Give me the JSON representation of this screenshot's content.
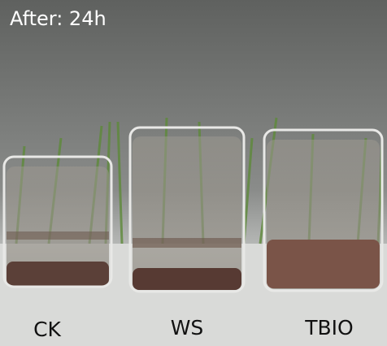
{
  "caption": "After: 24h",
  "samples": [
    {
      "label": "CK"
    },
    {
      "label": "WS"
    },
    {
      "label": "TBIO"
    }
  ]
}
